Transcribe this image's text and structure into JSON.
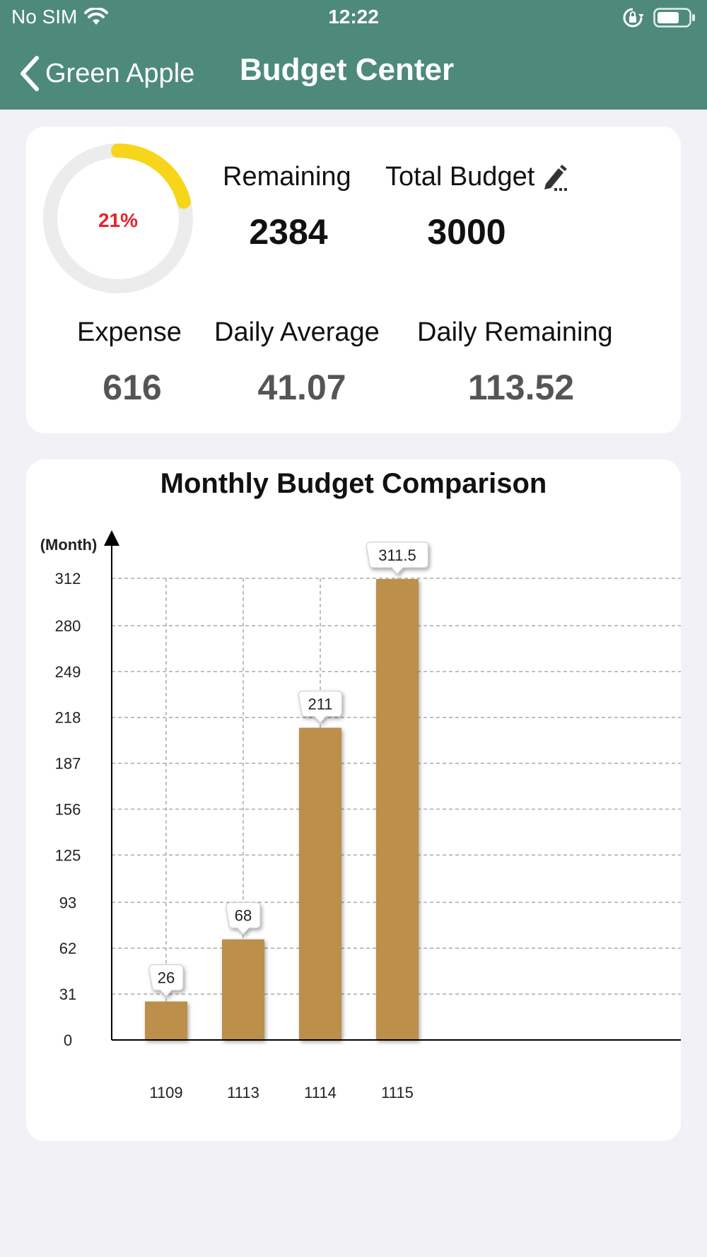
{
  "status_bar": {
    "carrier": "No SIM",
    "time": "12:22"
  },
  "nav": {
    "back_label": "Green Apple",
    "title": "Budget Center"
  },
  "summary": {
    "progress_percent": 21,
    "progress_label": "21%",
    "remaining_label": "Remaining",
    "remaining_value": "2384",
    "total_label": "Total Budget",
    "total_value": "3000",
    "expense_label": "Expense",
    "expense_value": "616",
    "daily_avg_label": "Daily Average",
    "daily_avg_value": "41.07",
    "daily_rem_label": "Daily Remaining",
    "daily_rem_value": "113.52"
  },
  "colors": {
    "header": "#4e8a7b",
    "bar": "#bc8f4b",
    "ring": "#f7d51a",
    "ring_track": "#ececec",
    "percent": "#e8232a"
  },
  "chart_data": {
    "type": "bar",
    "title": "Monthly Budget Comparison",
    "ylabel": "(Month)",
    "categories": [
      "1109",
      "1113",
      "1114",
      "1115"
    ],
    "values": [
      26,
      68,
      211,
      311.5
    ],
    "value_labels": [
      "26",
      "68",
      "211",
      "311.5"
    ],
    "yticks": [
      "0",
      "31",
      "62",
      "93",
      "125",
      "156",
      "187",
      "218",
      "249",
      "280",
      "312"
    ],
    "ylim": [
      0,
      312
    ],
    "grid": true
  }
}
